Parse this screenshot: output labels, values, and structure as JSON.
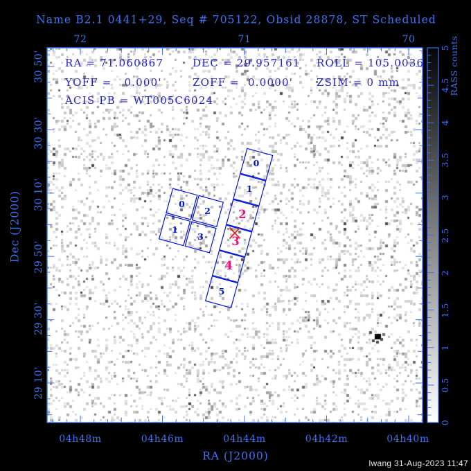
{
  "title": "Name B2.1 0441+29, Seq # 705122, Obsid 28878, ST Scheduled",
  "annotations": {
    "ra": "RA = 71.060867",
    "dec": "DEC = 29.957161",
    "roll": "ROLL = 105.0036",
    "yoff": "YOFF =   0.000'",
    "zoff": "ZOFF =  0.0000'",
    "zsim": "ZSIM = 0 mm",
    "acis_pb": "ACIS PB = WT005C6024"
  },
  "axes": {
    "top": {
      "labels": [
        "72",
        "71",
        "70"
      ]
    },
    "bottom": {
      "title": "RA (J2000)",
      "labels": [
        "04h48m",
        "04h46m",
        "04h44m",
        "04h42m",
        "04h40m"
      ]
    },
    "left": {
      "title": "Dec (J2000)",
      "labels": [
        "30 50'",
        "30 30'",
        "30 10'",
        "29 50'",
        "29 30'",
        "29 10'"
      ]
    }
  },
  "colorbar": {
    "title": "RASS counts",
    "labels": [
      "0",
      "0.5",
      "1",
      "1.5",
      "2",
      "2.5",
      "3",
      "3.5",
      "4",
      "4.5",
      "5"
    ]
  },
  "footprint": {
    "acis_s_labels": [
      "0",
      "1",
      "2",
      "3",
      "4",
      "5"
    ],
    "acis_s_active": [
      "2",
      "3",
      "4"
    ],
    "acis_i_labels": [
      "0",
      "2",
      "1",
      "3"
    ]
  },
  "footer": "lwang 31-Aug-2023 11:47",
  "colors": {
    "background": "#000000",
    "plot_background": "#ffffff",
    "accent_blue": "#3b72f5",
    "annotation_blue": "#2323cc",
    "chip_outline_blue": "#0011dd",
    "active_chip_magenta": "#f01080",
    "aimpoint_red": "#e42217",
    "noise_grays": [
      "#e2e2e2",
      "#d5d5d5",
      "#c8c8c8",
      "#b4b4b4",
      "#9f9f9f",
      "#898989",
      "#6e6e6e",
      "#4a4a4a"
    ]
  },
  "chart_data": {
    "type": "heatmap",
    "title": "Name B2.1 0441+29, Seq # 705122, Obsid 28878, ST Scheduled",
    "xlabel": "RA (J2000)",
    "ylabel": "Dec (J2000)",
    "x_ticks_time": [
      "04h48m",
      "04h46m",
      "04h44m",
      "04h42m",
      "04h40m"
    ],
    "x_ticks_degrees": [
      72,
      71,
      70
    ],
    "x_range_degrees": [
      72.2,
      69.92
    ],
    "x_direction": "RA increases to the left",
    "y_ticks": [
      "30 50'",
      "30 30'",
      "30 10'",
      "29 50'",
      "29 30'",
      "29 10'"
    ],
    "y_range_degrees": [
      28.96,
      30.93
    ],
    "colorbar": {
      "label": "RASS counts",
      "range": [
        0,
        5
      ],
      "label_step": 0.5,
      "scale": "white (0) to black (5) grayscale"
    },
    "background_image": "sparse grayscale photon-count noise on white (ROSAT All-Sky Survey field)",
    "point_sources": [
      {
        "ra_deg": 70.19,
        "dec_deg": 29.41,
        "note": "dark pixel cluster (brightest source in field)"
      }
    ],
    "aimpoint": {
      "ra_deg": 71.060867,
      "dec_deg": 29.957161,
      "roll_deg": 105.0036,
      "marker": "red X on chip S3"
    },
    "instrument_overlay": {
      "rotation_deg": 15.3,
      "acis_s": {
        "chip_labels": [
          "0",
          "1",
          "2",
          "3",
          "4",
          "5"
        ],
        "highlighted_chips": [
          "2",
          "3",
          "4"
        ]
      },
      "acis_i": {
        "chip_labels": [
          "0",
          "2",
          "1",
          "3"
        ]
      }
    }
  }
}
